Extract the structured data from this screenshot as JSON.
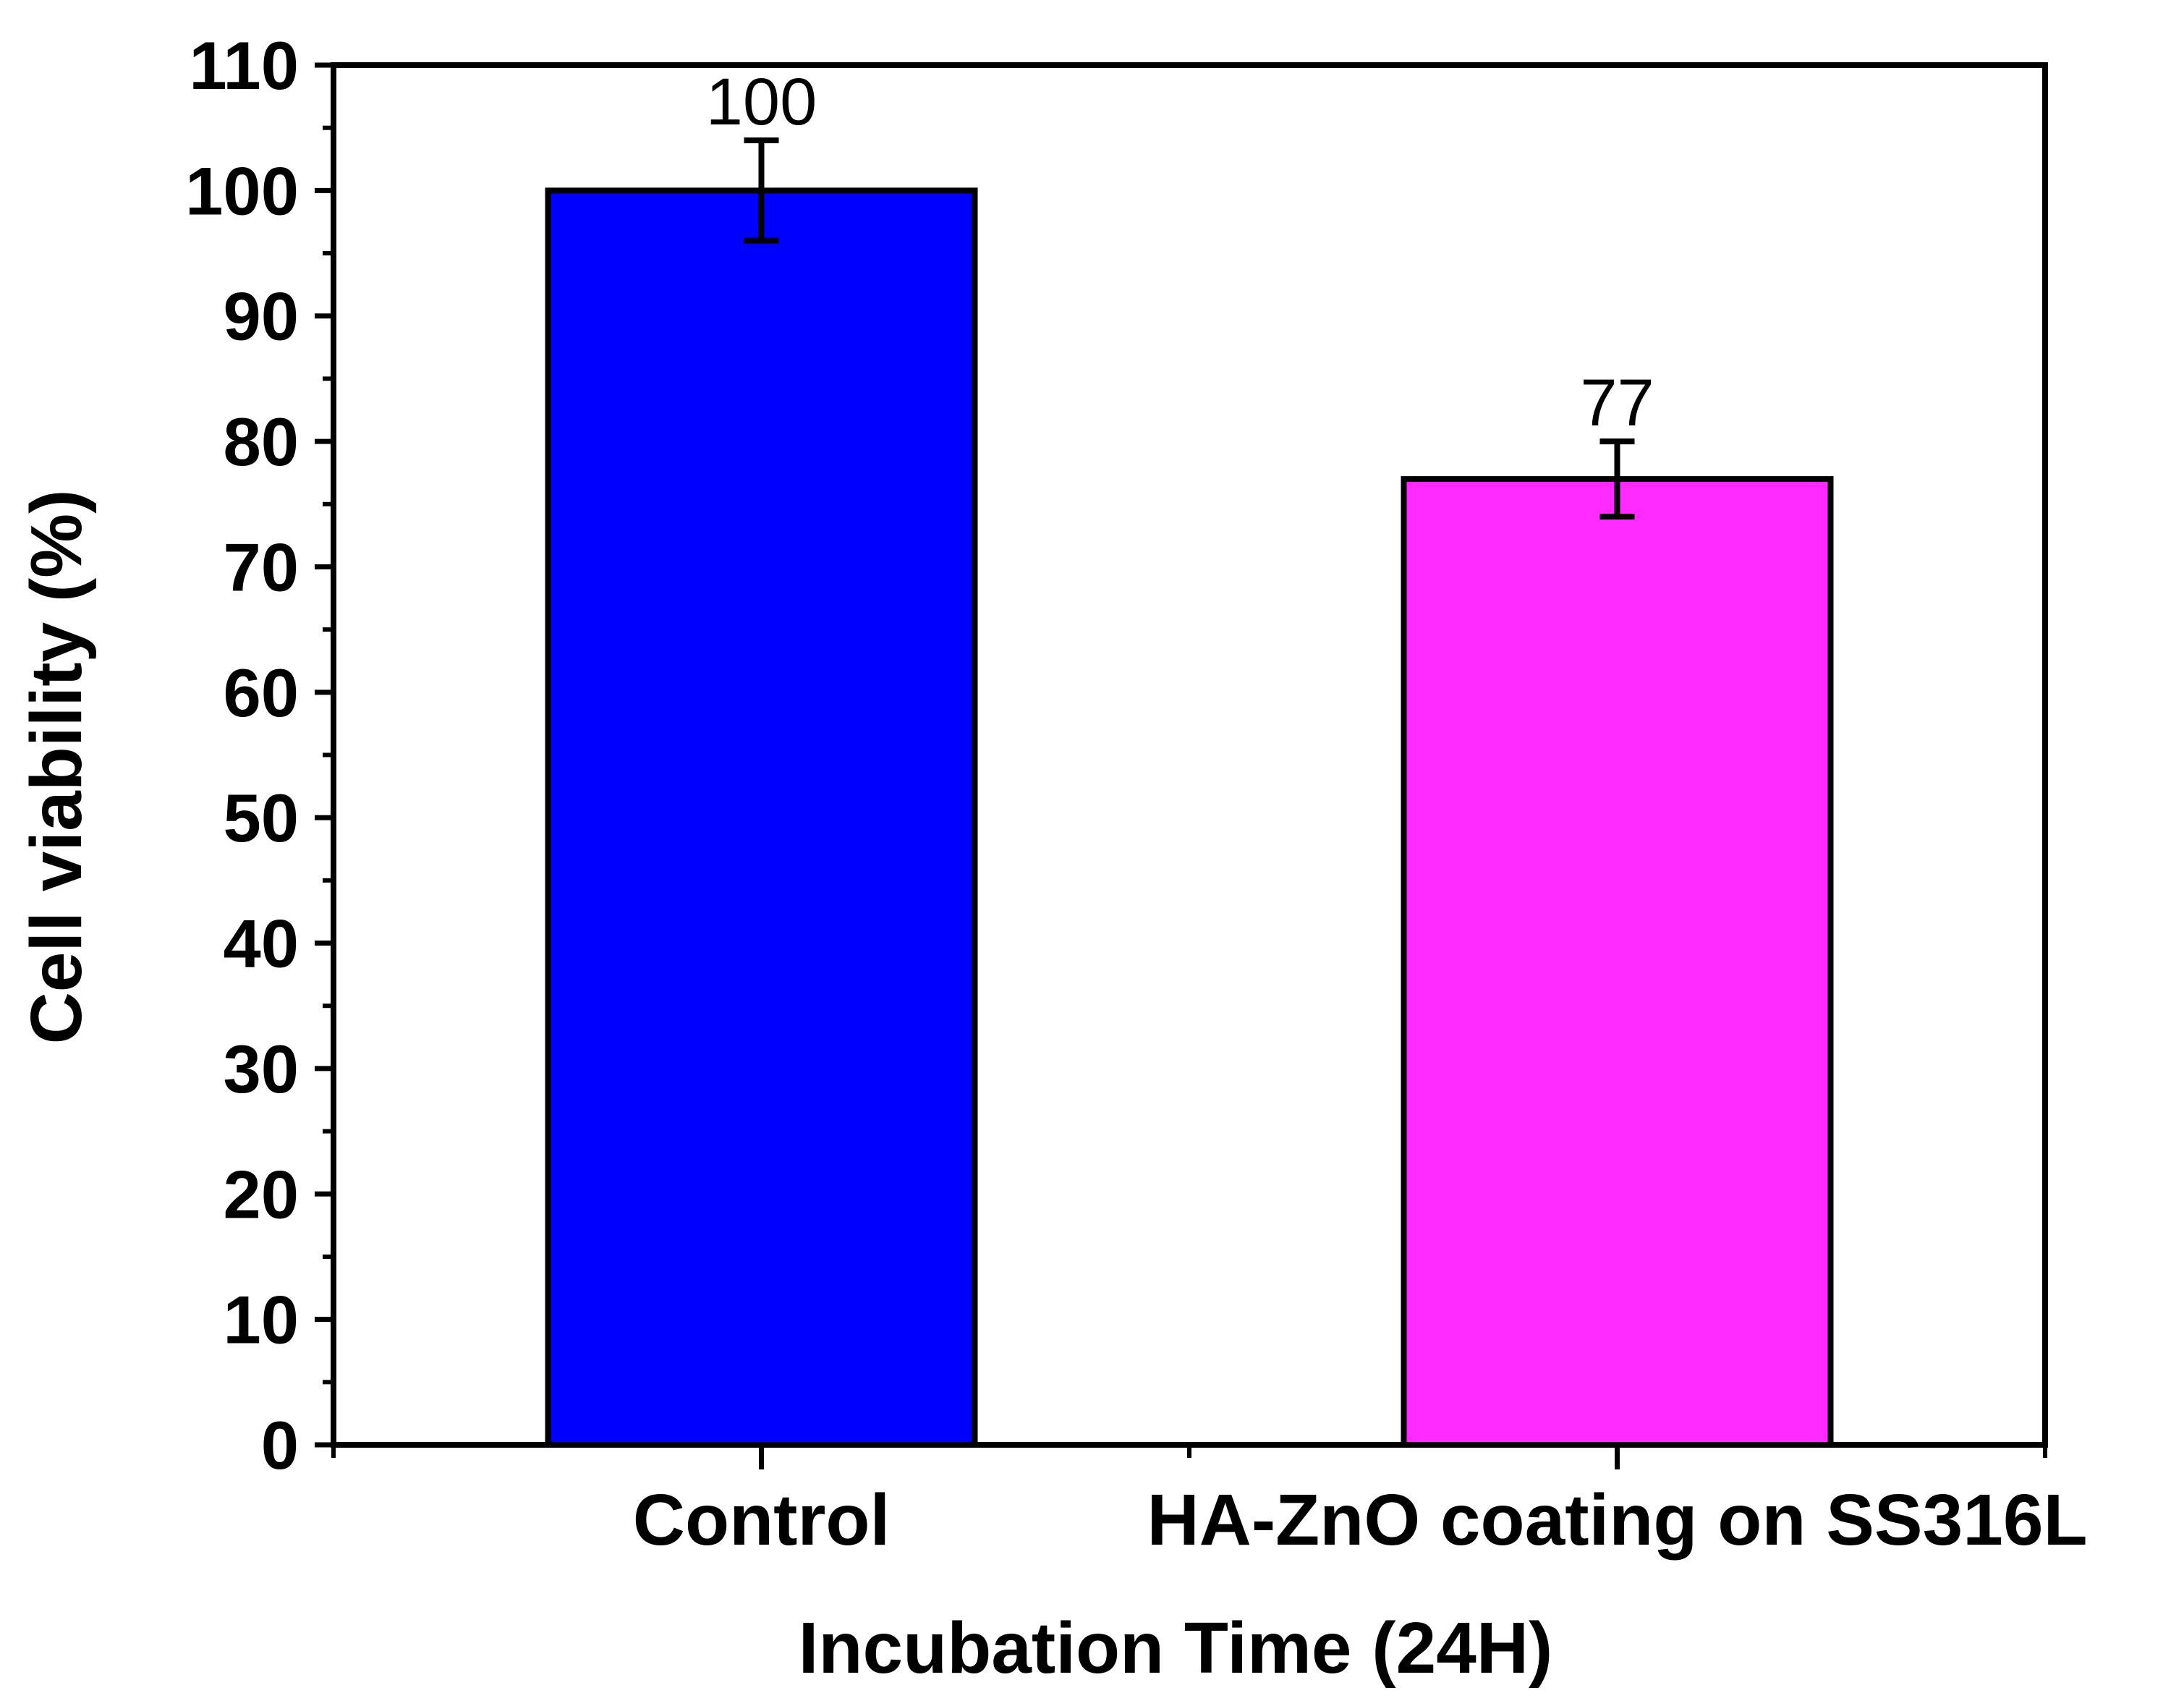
{
  "chart_data": {
    "type": "bar",
    "title": "",
    "xlabel": "Incubation Time (24H)",
    "ylabel": "Cell viability (%)",
    "ylim": [
      0,
      110
    ],
    "yticks": [
      0,
      10,
      20,
      30,
      40,
      50,
      60,
      70,
      80,
      90,
      100,
      110
    ],
    "categories": [
      "Control",
      "HA-ZnO coating on SS316L"
    ],
    "values": [
      100,
      77
    ],
    "errors": [
      4,
      3
    ],
    "data_labels": [
      "100",
      "77"
    ],
    "colors": [
      "#0000FF",
      "#FF2AFF"
    ],
    "grid": false,
    "legend": false
  }
}
